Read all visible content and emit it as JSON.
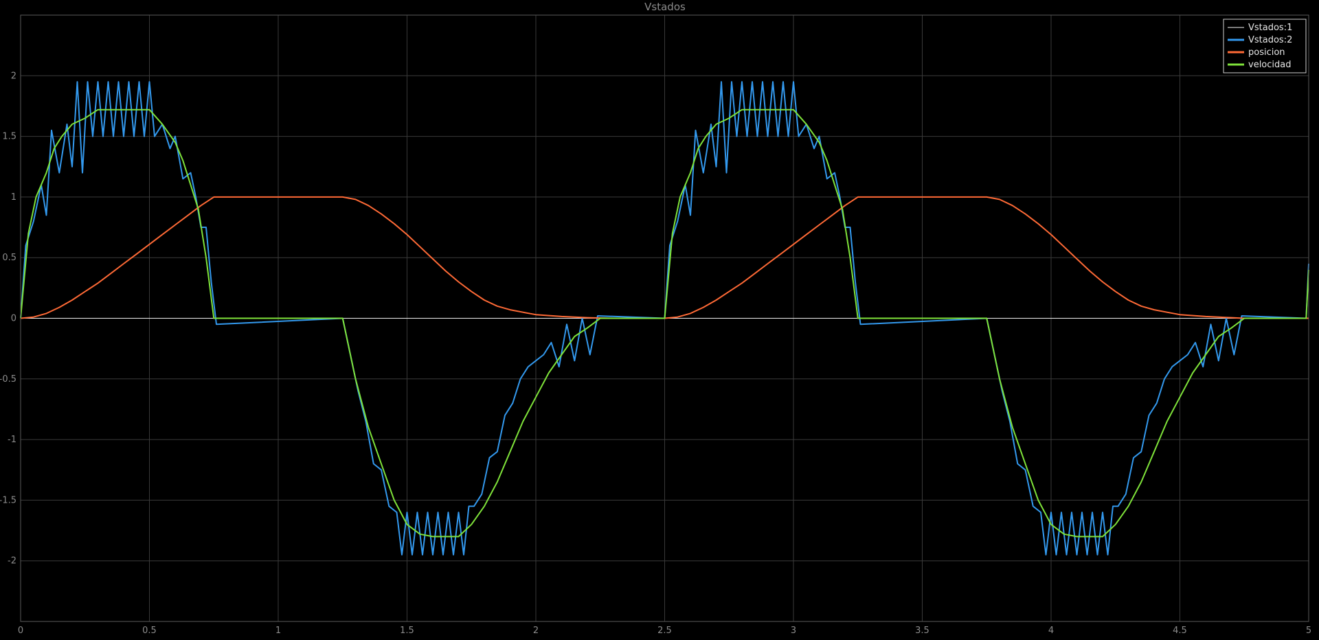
{
  "chart_data": {
    "type": "line",
    "title": "Vstados",
    "xlabel": "",
    "ylabel": "",
    "xlim": [
      0,
      5
    ],
    "ylim": [
      -2.5,
      2.5
    ],
    "xticks": [
      0,
      0.5,
      1,
      1.5,
      2,
      2.5,
      3,
      3.5,
      4,
      4.5,
      5
    ],
    "xtick_labels": [
      "0",
      "0.5",
      "1",
      "1.5",
      "2",
      "2.5",
      "3",
      "3.5",
      "4",
      "4.5",
      "5"
    ],
    "yticks": [
      2,
      1.5,
      1,
      0.5,
      0,
      -0.5,
      -1,
      -1.5,
      -2
    ],
    "ytick_labels": [
      "2",
      "1.5",
      "1",
      "0.5",
      "0",
      "-0.5",
      "-1",
      "-1.5",
      "-2"
    ],
    "grid": true,
    "legend_position": "top-right",
    "series": [
      {
        "name": "Vstados:1",
        "color": "#f2f2f2",
        "x": [
          0,
          0.75,
          1.25,
          1.5,
          1.75,
          2.25,
          2.5,
          3.25,
          3.75,
          4.0,
          4.25,
          4.75,
          5.0
        ],
        "y": [
          0,
          0,
          0,
          0,
          0,
          0,
          0,
          0,
          0,
          0,
          0,
          0,
          0
        ]
      },
      {
        "name": "Vstados:2",
        "color": "#3399ee",
        "x": [
          0,
          0.02,
          0.05,
          0.08,
          0.1,
          0.12,
          0.15,
          0.18,
          0.2,
          0.22,
          0.24,
          0.26,
          0.28,
          0.3,
          0.32,
          0.34,
          0.36,
          0.38,
          0.4,
          0.42,
          0.44,
          0.46,
          0.48,
          0.5,
          0.52,
          0.55,
          0.58,
          0.6,
          0.63,
          0.66,
          0.68,
          0.7,
          0.72,
          0.74,
          0.76,
          1.25,
          1.28,
          1.31,
          1.34,
          1.37,
          1.4,
          1.43,
          1.46,
          1.48,
          1.5,
          1.52,
          1.54,
          1.56,
          1.58,
          1.6,
          1.62,
          1.64,
          1.66,
          1.68,
          1.7,
          1.72,
          1.74,
          1.76,
          1.79,
          1.82,
          1.85,
          1.88,
          1.91,
          1.94,
          1.97,
          2.0,
          2.03,
          2.06,
          2.09,
          2.12,
          2.15,
          2.18,
          2.21,
          2.24,
          2.5,
          2.52,
          2.55,
          2.58,
          2.6,
          2.62,
          2.65,
          2.68,
          2.7,
          2.72,
          2.74,
          2.76,
          2.78,
          2.8,
          2.82,
          2.84,
          2.86,
          2.88,
          2.9,
          2.92,
          2.94,
          2.96,
          2.98,
          3.0,
          3.02,
          3.05,
          3.08,
          3.1,
          3.13,
          3.16,
          3.18,
          3.2,
          3.22,
          3.24,
          3.26,
          3.75,
          3.78,
          3.81,
          3.84,
          3.87,
          3.9,
          3.93,
          3.96,
          3.98,
          4.0,
          4.02,
          4.04,
          4.06,
          4.08,
          4.1,
          4.12,
          4.14,
          4.16,
          4.18,
          4.2,
          4.22,
          4.24,
          4.26,
          4.29,
          4.32,
          4.35,
          4.38,
          4.41,
          4.44,
          4.47,
          4.5,
          4.53,
          4.56,
          4.59,
          4.62,
          4.65,
          4.68,
          4.71,
          4.74,
          4.99,
          5.0
        ],
        "y": [
          0,
          0.6,
          0.8,
          1.1,
          0.85,
          1.55,
          1.2,
          1.6,
          1.25,
          1.95,
          1.2,
          1.95,
          1.5,
          1.95,
          1.5,
          1.95,
          1.5,
          1.95,
          1.5,
          1.95,
          1.5,
          1.95,
          1.5,
          1.95,
          1.5,
          1.6,
          1.4,
          1.5,
          1.15,
          1.2,
          1.0,
          0.75,
          0.75,
          0.3,
          -0.05,
          0,
          -0.3,
          -0.6,
          -0.85,
          -1.2,
          -1.25,
          -1.55,
          -1.6,
          -1.95,
          -1.6,
          -1.95,
          -1.6,
          -1.95,
          -1.6,
          -1.95,
          -1.6,
          -1.95,
          -1.6,
          -1.95,
          -1.6,
          -1.95,
          -1.55,
          -1.55,
          -1.45,
          -1.15,
          -1.1,
          -0.8,
          -0.7,
          -0.5,
          -0.4,
          -0.35,
          -0.3,
          -0.2,
          -0.4,
          -0.05,
          -0.35,
          0.0,
          -0.3,
          0.02,
          0,
          0.6,
          0.8,
          1.1,
          0.85,
          1.55,
          1.2,
          1.6,
          1.25,
          1.95,
          1.2,
          1.95,
          1.5,
          1.95,
          1.5,
          1.95,
          1.5,
          1.95,
          1.5,
          1.95,
          1.5,
          1.95,
          1.5,
          1.95,
          1.5,
          1.6,
          1.4,
          1.5,
          1.15,
          1.2,
          1.0,
          0.75,
          0.75,
          0.3,
          -0.05,
          0,
          -0.3,
          -0.6,
          -0.85,
          -1.2,
          -1.25,
          -1.55,
          -1.6,
          -1.95,
          -1.6,
          -1.95,
          -1.6,
          -1.95,
          -1.6,
          -1.95,
          -1.6,
          -1.95,
          -1.6,
          -1.95,
          -1.6,
          -1.95,
          -1.55,
          -1.55,
          -1.45,
          -1.15,
          -1.1,
          -0.8,
          -0.7,
          -0.5,
          -0.4,
          -0.35,
          -0.3,
          -0.2,
          -0.4,
          -0.05,
          -0.35,
          0.0,
          -0.3,
          0.02,
          0,
          0.45
        ]
      },
      {
        "name": "posicion",
        "color": "#ff6a36",
        "x": [
          0,
          0.05,
          0.1,
          0.15,
          0.2,
          0.25,
          0.3,
          0.35,
          0.4,
          0.45,
          0.5,
          0.55,
          0.6,
          0.65,
          0.7,
          0.75,
          1.25,
          1.3,
          1.35,
          1.4,
          1.45,
          1.5,
          1.55,
          1.6,
          1.65,
          1.7,
          1.75,
          1.8,
          1.85,
          1.9,
          1.95,
          2.0,
          2.1,
          2.2,
          2.3,
          2.5,
          2.55,
          2.6,
          2.65,
          2.7,
          2.75,
          2.8,
          2.85,
          2.9,
          2.95,
          3.0,
          3.05,
          3.1,
          3.15,
          3.2,
          3.25,
          3.75,
          3.8,
          3.85,
          3.9,
          3.95,
          4.0,
          4.05,
          4.1,
          4.15,
          4.2,
          4.25,
          4.3,
          4.35,
          4.4,
          4.45,
          4.5,
          4.6,
          4.7,
          4.75,
          5.0
        ],
        "y": [
          0,
          0.01,
          0.04,
          0.09,
          0.15,
          0.22,
          0.29,
          0.37,
          0.45,
          0.53,
          0.61,
          0.69,
          0.77,
          0.85,
          0.93,
          1.0,
          1.0,
          0.98,
          0.93,
          0.86,
          0.78,
          0.69,
          0.59,
          0.49,
          0.39,
          0.3,
          0.22,
          0.15,
          0.1,
          0.07,
          0.05,
          0.03,
          0.015,
          0.005,
          0,
          0,
          0.01,
          0.04,
          0.09,
          0.15,
          0.22,
          0.29,
          0.37,
          0.45,
          0.53,
          0.61,
          0.69,
          0.77,
          0.85,
          0.93,
          1.0,
          1.0,
          0.98,
          0.93,
          0.86,
          0.78,
          0.69,
          0.59,
          0.49,
          0.39,
          0.3,
          0.22,
          0.15,
          0.1,
          0.07,
          0.05,
          0.03,
          0.015,
          0.005,
          0,
          0
        ]
      },
      {
        "name": "velocidad",
        "color": "#7fe33a",
        "x": [
          0,
          0.03,
          0.06,
          0.1,
          0.13,
          0.16,
          0.2,
          0.25,
          0.3,
          0.5,
          0.55,
          0.6,
          0.63,
          0.66,
          0.69,
          0.72,
          0.75,
          1.25,
          1.3,
          1.35,
          1.4,
          1.45,
          1.5,
          1.55,
          1.6,
          1.7,
          1.75,
          1.8,
          1.85,
          1.9,
          1.95,
          2.0,
          2.05,
          2.1,
          2.15,
          2.2,
          2.25,
          2.5,
          2.53,
          2.56,
          2.6,
          2.63,
          2.66,
          2.7,
          2.75,
          2.8,
          3.0,
          3.05,
          3.1,
          3.13,
          3.16,
          3.19,
          3.22,
          3.25,
          3.75,
          3.8,
          3.85,
          3.9,
          3.95,
          4.0,
          4.05,
          4.1,
          4.2,
          4.25,
          4.3,
          4.35,
          4.4,
          4.45,
          4.5,
          4.55,
          4.6,
          4.65,
          4.7,
          4.75,
          4.99,
          5.0
        ],
        "y": [
          0,
          0.7,
          1.0,
          1.2,
          1.4,
          1.5,
          1.6,
          1.65,
          1.72,
          1.72,
          1.6,
          1.45,
          1.3,
          1.1,
          0.9,
          0.5,
          0,
          0,
          -0.5,
          -0.9,
          -1.2,
          -1.5,
          -1.7,
          -1.78,
          -1.8,
          -1.8,
          -1.7,
          -1.55,
          -1.35,
          -1.1,
          -0.85,
          -0.65,
          -0.45,
          -0.3,
          -0.15,
          -0.08,
          0,
          0,
          0.7,
          1.0,
          1.2,
          1.4,
          1.5,
          1.6,
          1.65,
          1.72,
          1.72,
          1.6,
          1.45,
          1.3,
          1.1,
          0.9,
          0.5,
          0,
          0,
          -0.5,
          -0.9,
          -1.2,
          -1.5,
          -1.7,
          -1.78,
          -1.8,
          -1.8,
          -1.7,
          -1.55,
          -1.35,
          -1.1,
          -0.85,
          -0.65,
          -0.45,
          -0.3,
          -0.15,
          -0.08,
          0,
          0,
          0.4
        ]
      }
    ]
  }
}
